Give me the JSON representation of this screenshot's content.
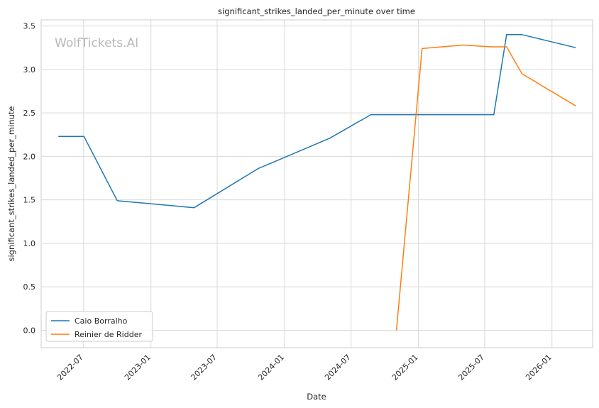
{
  "chart_data": {
    "type": "line",
    "title": "significant_strikes_landed_per_minute over time",
    "xlabel": "Date",
    "ylabel": "significant_strikes_landed_per_minute",
    "watermark": "WolfTickets.AI",
    "ylim": [
      -0.2,
      3.57
    ],
    "xlim": [
      "2022-03-07",
      "2026-04-22"
    ],
    "grid": true,
    "legend_position": "lower-left",
    "x_ticks": [
      "2022-07",
      "2023-01",
      "2023-07",
      "2024-01",
      "2024-07",
      "2025-01",
      "2025-07",
      "2026-01"
    ],
    "x_tick_dates": [
      "2022-07-01",
      "2023-01-01",
      "2023-07-01",
      "2024-01-01",
      "2024-07-01",
      "2025-01-01",
      "2025-07-01",
      "2026-01-01"
    ],
    "y_ticks": [
      0.0,
      0.5,
      1.0,
      1.5,
      2.0,
      2.5,
      3.0,
      3.5
    ],
    "y_tick_labels": [
      "0.0",
      "0.5",
      "1.0",
      "1.5",
      "2.0",
      "2.5",
      "3.0",
      "3.5"
    ],
    "series": [
      {
        "name": "Caio Borralho",
        "color": "#1f77b4",
        "points": [
          {
            "x": "2022-04-23",
            "y": 2.23
          },
          {
            "x": "2022-07-02",
            "y": 2.23
          },
          {
            "x": "2022-10-01",
            "y": 1.49
          },
          {
            "x": "2023-04-29",
            "y": 1.41
          },
          {
            "x": "2023-10-21",
            "y": 1.86
          },
          {
            "x": "2024-05-04",
            "y": 2.21
          },
          {
            "x": "2024-08-24",
            "y": 2.48
          },
          {
            "x": "2025-07-26",
            "y": 2.48
          },
          {
            "x": "2025-08-30",
            "y": 3.4
          },
          {
            "x": "2025-10-11",
            "y": 3.4
          },
          {
            "x": "2026-03-07",
            "y": 3.25
          }
        ]
      },
      {
        "name": "Reinier de Ridder",
        "color": "#ff7f0e",
        "points": [
          {
            "x": "2024-11-02",
            "y": 0.0
          },
          {
            "x": "2025-01-11",
            "y": 3.24
          },
          {
            "x": "2025-05-03",
            "y": 3.28
          },
          {
            "x": "2025-07-19",
            "y": 3.26
          },
          {
            "x": "2025-08-30",
            "y": 3.26
          },
          {
            "x": "2025-10-11",
            "y": 2.95
          },
          {
            "x": "2026-03-07",
            "y": 2.58
          }
        ]
      }
    ]
  }
}
